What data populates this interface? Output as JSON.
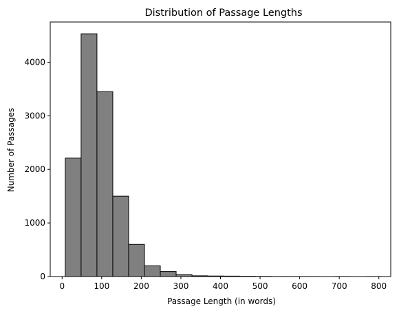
{
  "chart_data": {
    "type": "bar",
    "title": "Distribution of Passage Lengths",
    "xlabel": "Passage Length (in words)",
    "ylabel": "Number of Passages",
    "xlim": [
      -30,
      830
    ],
    "ylim": [
      0,
      4750
    ],
    "xticks": [
      0,
      100,
      200,
      300,
      400,
      500,
      600,
      700,
      800
    ],
    "yticks": [
      0,
      1000,
      2000,
      3000,
      4000
    ],
    "bin_edges": [
      8,
      48,
      88,
      128,
      168,
      208,
      248,
      288,
      328,
      368,
      408,
      448,
      488,
      528,
      568,
      608,
      648,
      688,
      728,
      768,
      808
    ],
    "values": [
      2210,
      4530,
      3450,
      1500,
      600,
      200,
      95,
      35,
      14,
      10,
      8,
      5,
      3,
      1,
      1,
      1,
      0,
      1,
      0,
      1
    ],
    "bar_color": "#808080",
    "edge_color": "#000000",
    "grid": false
  }
}
